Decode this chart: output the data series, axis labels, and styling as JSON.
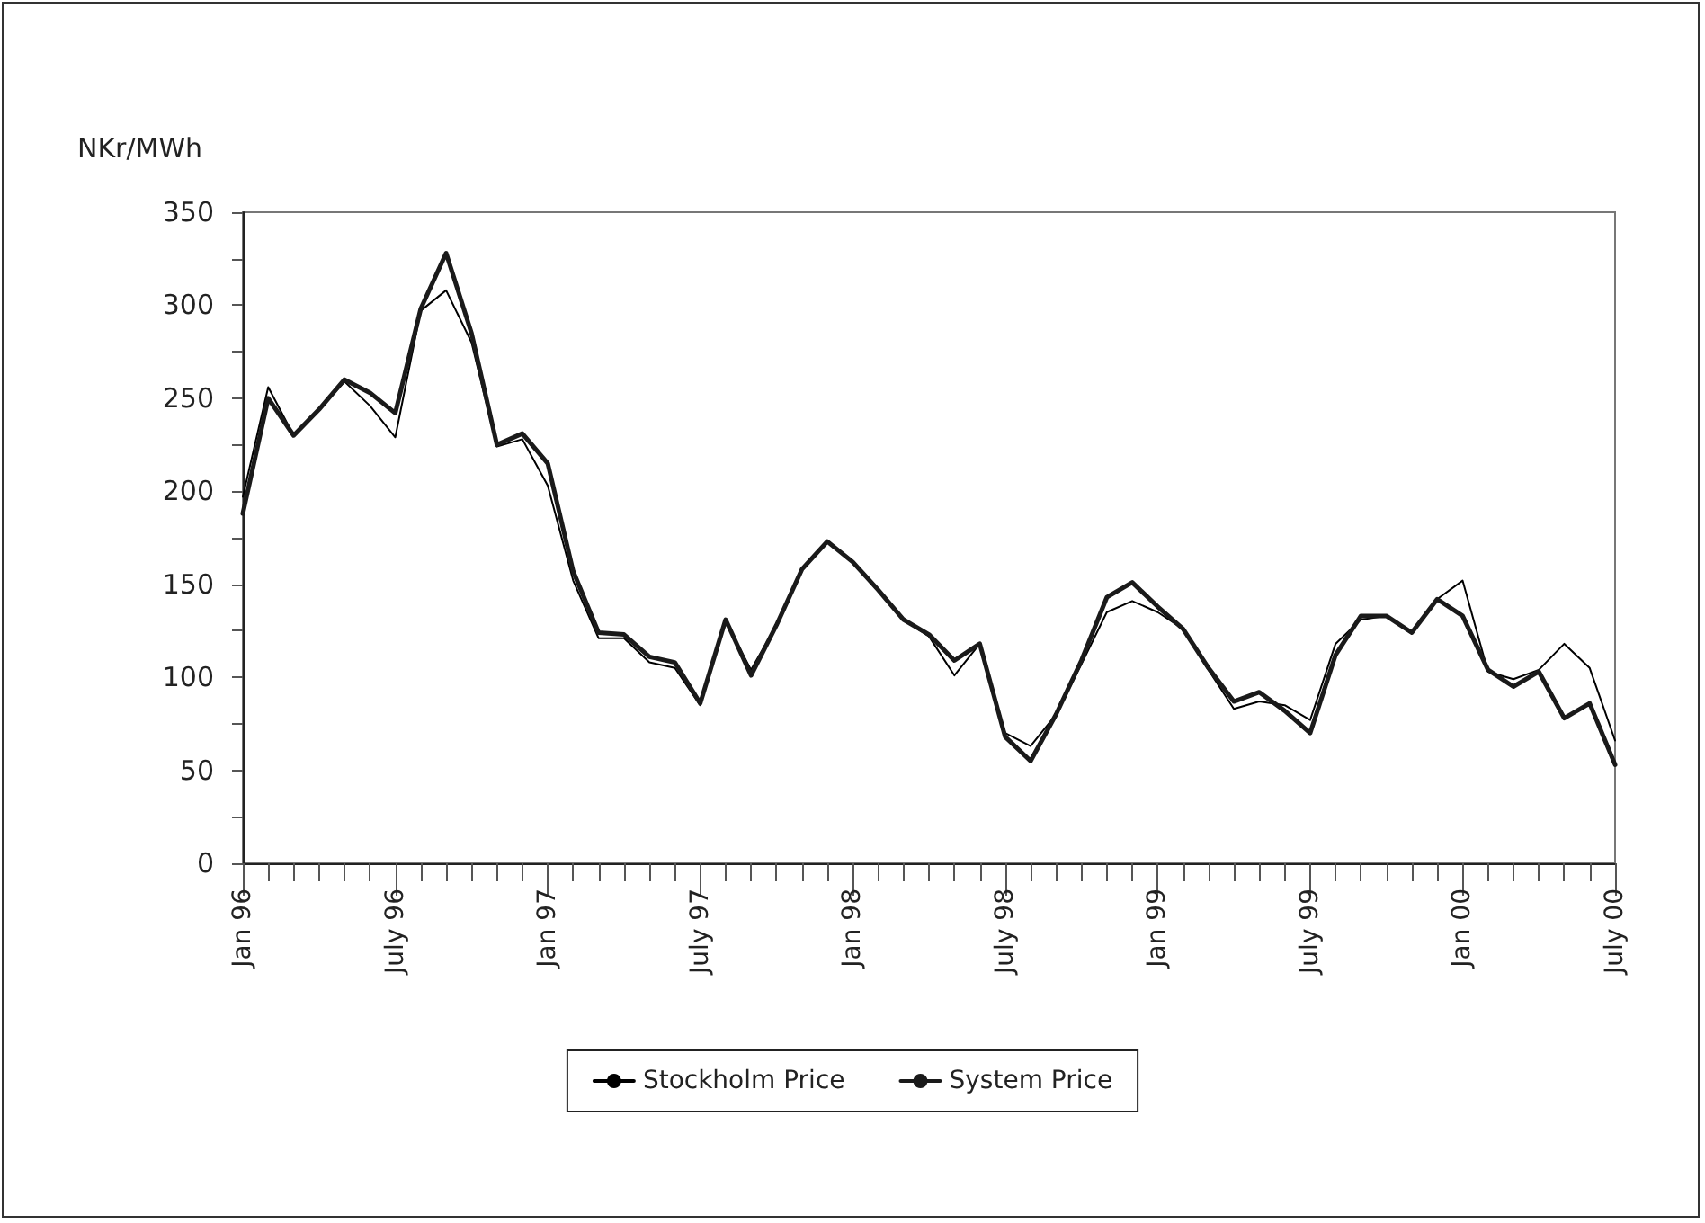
{
  "chart_data": {
    "type": "line",
    "ylabel": "NKr/MWh",
    "categories": [
      "Jan 96",
      null,
      null,
      null,
      null,
      null,
      "July 96",
      null,
      null,
      null,
      null,
      null,
      "Jan 97",
      null,
      null,
      null,
      null,
      null,
      "July 97",
      null,
      null,
      null,
      null,
      null,
      "Jan 98",
      null,
      null,
      null,
      null,
      null,
      "July 98",
      null,
      null,
      null,
      null,
      null,
      "Jan 99",
      null,
      null,
      null,
      null,
      null,
      "July 99",
      null,
      null,
      null,
      null,
      null,
      "Jan 00",
      null,
      null,
      null,
      null,
      null,
      "July 00"
    ],
    "series": [
      {
        "name": "Stockholm Price",
        "color": "#000000",
        "values": [
          197,
          256,
          230,
          244,
          259,
          246,
          229,
          297,
          308,
          280,
          224,
          228,
          203,
          152,
          121,
          121,
          108,
          105,
          85,
          130,
          104,
          128,
          158,
          173,
          162,
          147,
          131,
          122,
          101,
          118,
          70,
          63,
          80,
          107,
          135,
          141,
          135,
          126,
          104,
          83,
          87,
          85,
          77,
          118,
          131,
          133,
          124,
          142,
          152,
          103,
          99,
          104,
          118,
          105,
          66
        ]
      },
      {
        "name": "System Price",
        "color": "#1a1a1a",
        "values": [
          188,
          250,
          230,
          244,
          260,
          253,
          242,
          298,
          328,
          285,
          225,
          231,
          215,
          157,
          124,
          123,
          111,
          108,
          86,
          131,
          101,
          128,
          158,
          173,
          162,
          147,
          131,
          123,
          109,
          118,
          68,
          55,
          80,
          109,
          143,
          151,
          138,
          126,
          105,
          87,
          92,
          82,
          70,
          112,
          133,
          133,
          124,
          142,
          133,
          104,
          95,
          103,
          78,
          86,
          53
        ]
      }
    ],
    "ylim": [
      0,
      350
    ],
    "yticks": [
      0,
      {
        "value": 25,
        "label": null
      },
      50,
      {
        "value": 75,
        "label": null
      },
      100,
      {
        "value": 125,
        "label": null
      },
      150,
      {
        "value": 175,
        "label": null
      },
      200,
      {
        "value": 225,
        "label": null
      },
      250,
      {
        "value": 275,
        "label": null
      },
      300,
      {
        "value": 325,
        "label": null
      },
      350
    ],
    "grid": false,
    "legend": "bottom",
    "marker": "none",
    "line_style": "solid"
  }
}
